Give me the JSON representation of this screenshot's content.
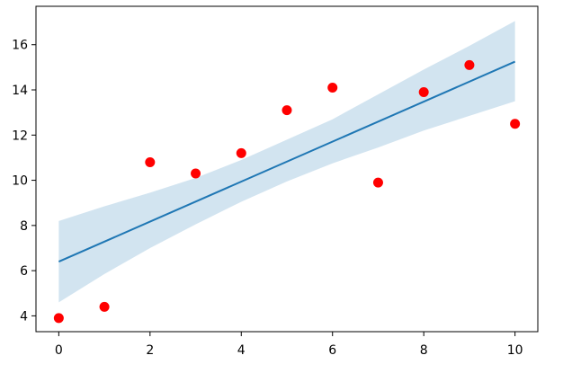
{
  "chart_data": {
    "type": "scatter",
    "title": "",
    "xlabel": "",
    "ylabel": "",
    "xlim": [
      -0.5,
      10.5
    ],
    "ylim": [
      3.3,
      17.7
    ],
    "xticks": [
      0,
      2,
      4,
      6,
      8,
      10
    ],
    "yticks": [
      4,
      6,
      8,
      10,
      12,
      14,
      16
    ],
    "grid": false,
    "legend": "none",
    "series": [
      {
        "kind": "scatter",
        "color": "#ff0000",
        "x": [
          0,
          1,
          2,
          3,
          4,
          5,
          6,
          7,
          8,
          9,
          10
        ],
        "y": [
          3.9,
          4.4,
          10.8,
          10.3,
          11.2,
          13.1,
          14.1,
          9.9,
          13.9,
          15.1,
          12.5
        ]
      },
      {
        "kind": "line",
        "color": "#1f77b4",
        "x": [
          0,
          10
        ],
        "y": [
          6.4,
          15.25
        ]
      },
      {
        "kind": "band",
        "color": "#1f77b4",
        "opacity": 0.2,
        "x": [
          0,
          1,
          2,
          3,
          4,
          5,
          6,
          7,
          8,
          9,
          10
        ],
        "lower": [
          4.6,
          5.85,
          7.0,
          8.05,
          9.05,
          9.95,
          10.75,
          11.45,
          12.2,
          12.85,
          13.5
        ],
        "upper": [
          8.2,
          8.85,
          9.45,
          10.1,
          10.9,
          11.8,
          12.7,
          13.8,
          14.9,
          15.95,
          17.05
        ]
      }
    ]
  }
}
